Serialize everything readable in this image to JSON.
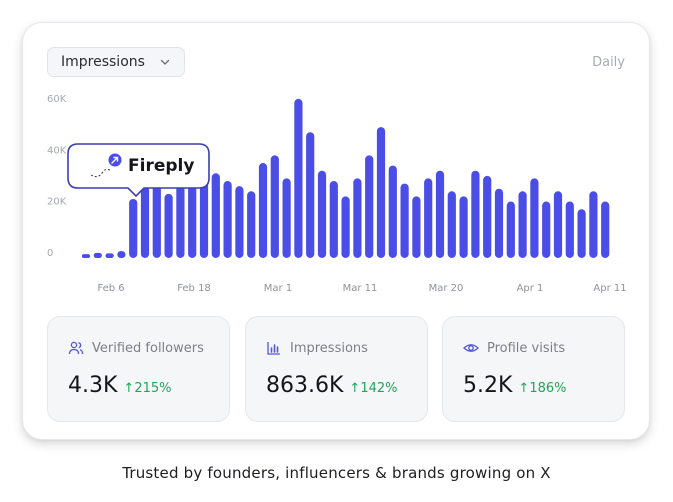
{
  "header": {
    "metric_selector": {
      "selected": "Impressions"
    },
    "period_label": "Daily"
  },
  "tooltip": {
    "label": "Fireply",
    "icon": "rocket-icon"
  },
  "chart_data": {
    "type": "bar",
    "y_ticks": [
      "0",
      "20K",
      "40K",
      "60K"
    ],
    "x_ticks": [
      "Feb 6",
      "Feb 18",
      "Mar 1",
      "Mar 11",
      "Mar 20",
      "Apr 1",
      "Apr 11"
    ],
    "ylim": [
      0,
      60000
    ],
    "grid": false,
    "color": "#4a4ee6",
    "values": [
      1500,
      2000,
      1800,
      2700,
      23000,
      28000,
      30000,
      25000,
      29000,
      32000,
      35000,
      33000,
      30000,
      28000,
      26000,
      37000,
      40000,
      31000,
      62000,
      49000,
      34000,
      30000,
      24000,
      31000,
      40000,
      51000,
      36000,
      29000,
      24000,
      31000,
      34000,
      26000,
      24000,
      34000,
      32000,
      27000,
      22000,
      26000,
      31000,
      22000,
      26000,
      22000,
      19000,
      26000,
      22000
    ]
  },
  "stats": [
    {
      "label": "Verified followers",
      "value": "4.3K",
      "delta": "↑215%",
      "icon": "users-icon"
    },
    {
      "label": "Impressions",
      "value": "863.6K",
      "delta": "↑142%",
      "icon": "bar-chart-icon"
    },
    {
      "label": "Profile visits",
      "value": "5.2K",
      "delta": "↑186%",
      "icon": "eye-icon"
    }
  ],
  "footer": {
    "tagline": "Trusted by founders, influencers & brands growing on X"
  },
  "colors": {
    "accent": "#4a4ee6",
    "positive": "#22a55a",
    "tooltip_border": "#3b3fb0"
  }
}
